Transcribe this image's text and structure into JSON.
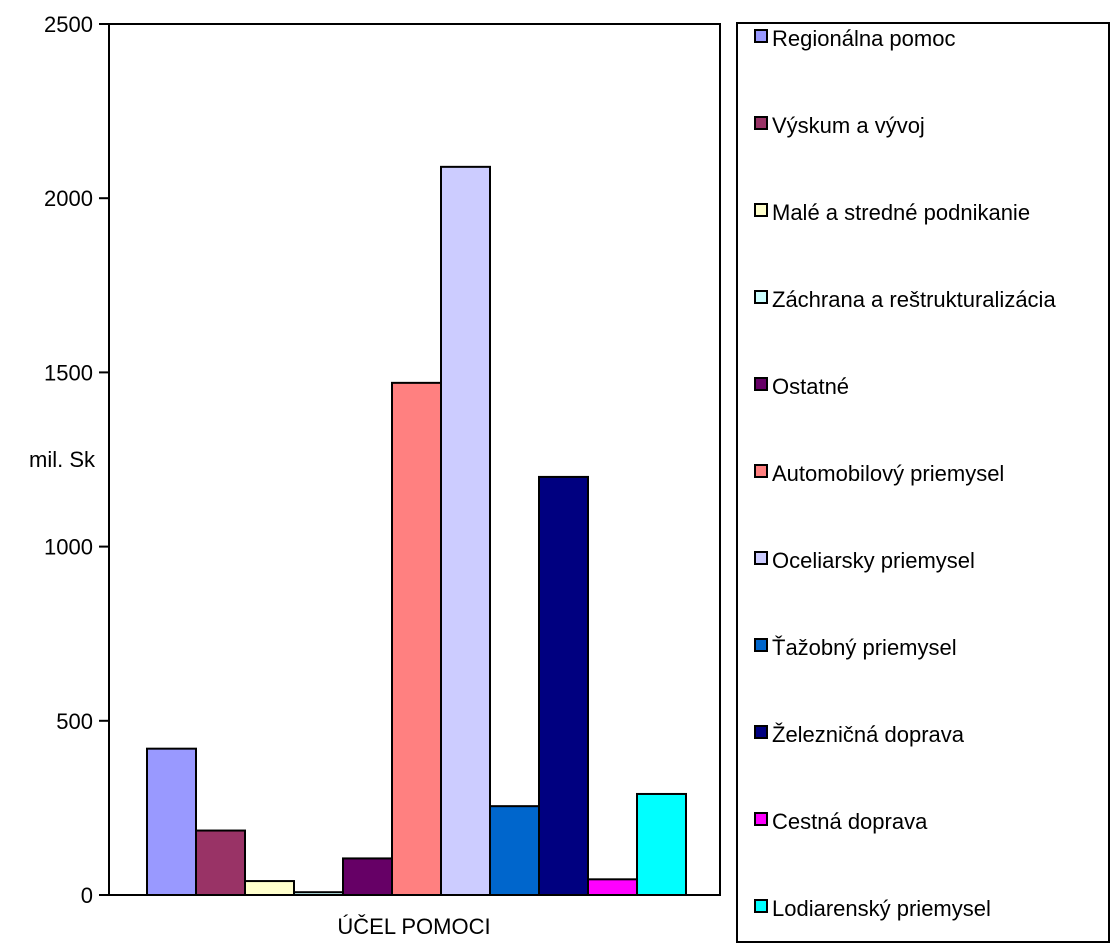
{
  "chart_data": {
    "type": "bar",
    "xlabel": "ÚČEL POMOCI",
    "ylabel": "mil. Sk",
    "ylim": [
      0,
      2500
    ],
    "yticks": [
      0,
      500,
      1000,
      1500,
      2000,
      2500
    ],
    "grid": false,
    "legend_position": "right",
    "series": [
      {
        "name": "Regionálna pomoc",
        "value": 420,
        "color": "#9999ff"
      },
      {
        "name": "Výskum a vývoj",
        "value": 185,
        "color": "#993366"
      },
      {
        "name": "Malé a stredné podnikanie",
        "value": 40,
        "color": "#ffffcc"
      },
      {
        "name": "Záchrana a reštrukturalizácia",
        "value": 8,
        "color": "#ccffff"
      },
      {
        "name": "Ostatné",
        "value": 105,
        "color": "#660066"
      },
      {
        "name": "Automobilový priemysel",
        "value": 1470,
        "color": "#ff8080"
      },
      {
        "name": "Oceliarsky priemysel",
        "value": 2090,
        "color": "#ccccff"
      },
      {
        "name": "Ťažobný priemysel",
        "value": 255,
        "color": "#0066cc"
      },
      {
        "name": "Železničná doprava",
        "value": 1200,
        "color": "#000080"
      },
      {
        "name": "Cestná doprava",
        "value": 45,
        "color": "#ff00ff"
      },
      {
        "name": "Lodiarenský priemysel",
        "value": 290,
        "color": "#00ffff"
      }
    ]
  }
}
